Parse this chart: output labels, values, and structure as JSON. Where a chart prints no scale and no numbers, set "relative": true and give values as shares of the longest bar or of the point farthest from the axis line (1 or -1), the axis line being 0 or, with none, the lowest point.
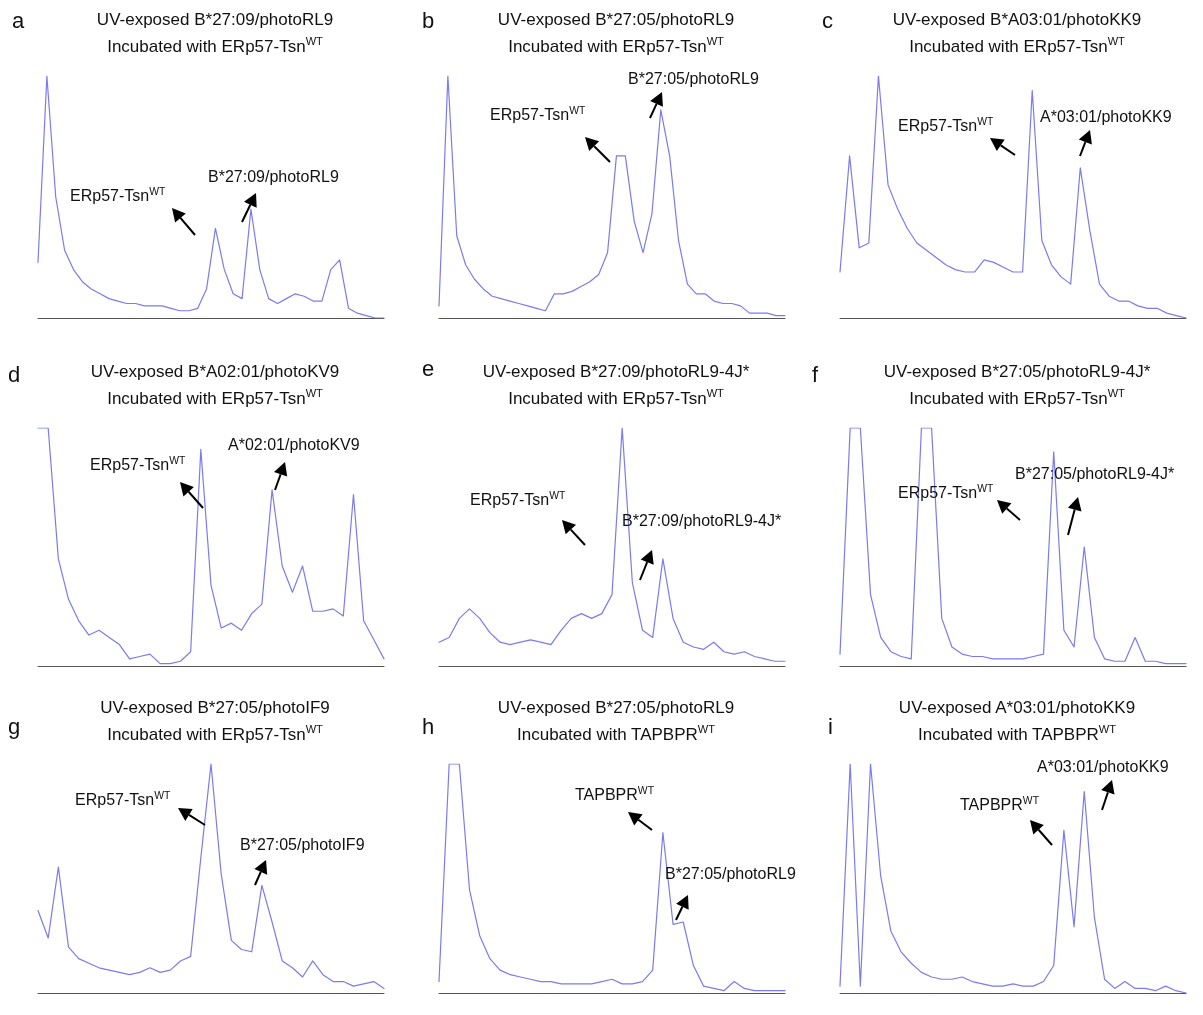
{
  "chart_data": [
    {
      "type": "line",
      "title": "UV-exposed B*27:09/photoRL9",
      "subtitle": "Incubated with ERp57-Tsn$^{WT}$",
      "relative": true,
      "marker": "none",
      "line_style": "solid",
      "grid": false,
      "annotations": [
        "a",
        "ERp57-Tsn$^{WT}$",
        "B*27:09/photoRL9"
      ],
      "categories": [
        null,
        null,
        null,
        null,
        null,
        null,
        null,
        null,
        null,
        null,
        null,
        null,
        null,
        null,
        null,
        null,
        null,
        null,
        null,
        null,
        null,
        null,
        null,
        null,
        null,
        null,
        null,
        null,
        null,
        null,
        null,
        null,
        null,
        null,
        null,
        null,
        null,
        null,
        null,
        null
      ],
      "series": [
        {
          "color": "#7b7bef",
          "values": [
            0.23,
            1.0,
            0.5,
            0.28,
            0.2,
            0.15,
            0.12,
            0.1,
            0.08,
            0.07,
            0.06,
            0.06,
            0.05,
            0.05,
            0.05,
            0.04,
            0.03,
            0.03,
            0.04,
            0.12,
            0.37,
            0.2,
            0.1,
            0.08,
            0.45,
            0.2,
            0.08,
            0.06,
            0.08,
            0.1,
            0.09,
            0.07,
            0.07,
            0.2,
            0.24,
            0.04,
            0.02,
            0.01,
            0.0,
            0.0
          ]
        }
      ]
    },
    {
      "type": "line",
      "title": "UV-exposed B*27:05/photoRL9",
      "subtitle": "Incubated with ERp57-Tsn$^{WT}$",
      "relative": true,
      "marker": "none",
      "line_style": "solid",
      "grid": false,
      "annotations": [
        "b",
        "ERp57-Tsn$^{WT}$",
        "B*27:05/photoRL9"
      ],
      "categories": [
        null,
        null,
        null,
        null,
        null,
        null,
        null,
        null,
        null,
        null,
        null,
        null,
        null,
        null,
        null,
        null,
        null,
        null,
        null,
        null,
        null,
        null,
        null,
        null,
        null,
        null,
        null,
        null,
        null,
        null,
        null,
        null,
        null,
        null,
        null,
        null,
        null,
        null,
        null,
        null
      ],
      "series": [
        {
          "color": "#7b7bef",
          "values": [
            0.05,
            1.0,
            0.34,
            0.22,
            0.16,
            0.12,
            0.09,
            0.08,
            0.07,
            0.06,
            0.05,
            0.04,
            0.03,
            0.1,
            0.1,
            0.11,
            0.13,
            0.15,
            0.18,
            0.27,
            0.67,
            0.67,
            0.4,
            0.27,
            0.43,
            0.86,
            0.67,
            0.32,
            0.14,
            0.1,
            0.1,
            0.07,
            0.06,
            0.06,
            0.05,
            0.02,
            0.02,
            0.02,
            0.01,
            0.01
          ]
        }
      ]
    },
    {
      "type": "line",
      "title": "UV-exposed B*A03:01/photoKK9",
      "subtitle": "Incubated with ERp57-Tsn$^{WT}$",
      "relative": true,
      "marker": "none",
      "line_style": "solid",
      "grid": false,
      "annotations": [
        "c",
        "ERp57-Tsn$^{WT}$",
        "A*03:01/photoKK9"
      ],
      "categories": [
        null,
        null,
        null,
        null,
        null,
        null,
        null,
        null,
        null,
        null,
        null,
        null,
        null,
        null,
        null,
        null,
        null,
        null,
        null,
        null,
        null,
        null,
        null,
        null,
        null,
        null,
        null,
        null,
        null,
        null,
        null,
        null,
        null,
        null,
        null,
        null,
        null
      ],
      "series": [
        {
          "color": "#7b7bef",
          "values": [
            0.19,
            0.67,
            0.29,
            0.31,
            1.0,
            0.55,
            0.45,
            0.37,
            0.31,
            0.28,
            0.25,
            0.22,
            0.2,
            0.19,
            0.19,
            0.24,
            0.23,
            0.21,
            0.19,
            0.19,
            0.94,
            0.32,
            0.22,
            0.17,
            0.14,
            0.62,
            0.36,
            0.14,
            0.09,
            0.07,
            0.07,
            0.05,
            0.04,
            0.04,
            0.02,
            0.01,
            0.0
          ]
        }
      ]
    },
    {
      "type": "line",
      "title": "UV-exposed B*A02:01/photoKV9",
      "subtitle": "Incubated with ERp57-Tsn$^{WT}$",
      "relative": true,
      "marker": "none",
      "line_style": "solid",
      "grid": false,
      "annotations": [
        "d",
        "ERp57-Tsn$^{WT}$",
        "A*02:01/photoKV9"
      ],
      "categories": [
        null,
        null,
        null,
        null,
        null,
        null,
        null,
        null,
        null,
        null,
        null,
        null,
        null,
        null,
        null,
        null,
        null,
        null,
        null,
        null,
        null,
        null,
        null,
        null,
        null,
        null,
        null,
        null,
        null,
        null,
        null,
        null,
        null,
        null,
        null
      ],
      "series": [
        {
          "color": "#7b7bef",
          "values": [
            1.0,
            1.0,
            0.45,
            0.28,
            0.19,
            0.13,
            0.15,
            0.12,
            0.09,
            0.03,
            0.04,
            0.05,
            0.01,
            0.01,
            0.02,
            0.06,
            0.91,
            0.34,
            0.16,
            0.18,
            0.15,
            0.22,
            0.26,
            0.74,
            0.42,
            0.31,
            0.42,
            0.23,
            0.23,
            0.24,
            0.21,
            0.72,
            0.19,
            0.11,
            0.03
          ]
        }
      ]
    },
    {
      "type": "line",
      "title": "UV-exposed B*27:09/photoRL9-4J*",
      "subtitle": "Incubated with ERp57-Tsn$^{WT}$",
      "relative": true,
      "marker": "none",
      "line_style": "solid",
      "grid": false,
      "annotations": [
        "e",
        "ERp57-Tsn$^{WT}$",
        "B*27:09/photoRL9-4J*"
      ],
      "categories": [
        null,
        null,
        null,
        null,
        null,
        null,
        null,
        null,
        null,
        null,
        null,
        null,
        null,
        null,
        null,
        null,
        null,
        null,
        null,
        null,
        null,
        null,
        null,
        null,
        null,
        null,
        null,
        null,
        null,
        null,
        null,
        null,
        null,
        null,
        null
      ],
      "series": [
        {
          "color": "#7b7bef",
          "values": [
            0.1,
            0.12,
            0.2,
            0.24,
            0.2,
            0.14,
            0.1,
            0.09,
            0.1,
            0.11,
            0.1,
            0.09,
            0.15,
            0.2,
            0.22,
            0.2,
            0.22,
            0.3,
            1.0,
            0.35,
            0.15,
            0.12,
            0.45,
            0.2,
            0.1,
            0.08,
            0.07,
            0.1,
            0.06,
            0.05,
            0.06,
            0.04,
            0.03,
            0.02,
            0.02
          ]
        }
      ]
    },
    {
      "type": "line",
      "title": "UV-exposed B*27:05/photoRL9-4J*",
      "subtitle": "Incubated with ERp57-Tsn$^{WT}$",
      "relative": true,
      "marker": "none",
      "line_style": "solid",
      "grid": false,
      "annotations": [
        "f",
        "ERp57-Tsn$^{WT}$",
        "B*27:05/photoRL9-4J*"
      ],
      "categories": [
        null,
        null,
        null,
        null,
        null,
        null,
        null,
        null,
        null,
        null,
        null,
        null,
        null,
        null,
        null,
        null,
        null,
        null,
        null,
        null,
        null,
        null,
        null,
        null,
        null,
        null,
        null,
        null,
        null,
        null,
        null,
        null,
        null,
        null,
        null
      ],
      "series": [
        {
          "color": "#7b7bef",
          "values": [
            0.05,
            1.0,
            1.0,
            0.3,
            0.12,
            0.06,
            0.04,
            0.03,
            1.0,
            1.0,
            0.2,
            0.08,
            0.05,
            0.04,
            0.04,
            0.03,
            0.03,
            0.03,
            0.03,
            0.04,
            0.05,
            0.9,
            0.15,
            0.08,
            0.5,
            0.12,
            0.03,
            0.02,
            0.02,
            0.12,
            0.02,
            0.02,
            0.01,
            0.01,
            0.01
          ]
        }
      ]
    },
    {
      "type": "line",
      "title": "UV-exposed B*27:05/photoIF9",
      "subtitle": "Incubated with ERp57-Tsn$^{WT}$",
      "relative": true,
      "marker": "none",
      "line_style": "solid",
      "grid": false,
      "annotations": [
        "g",
        "ERp57-Tsn$^{WT}$",
        "B*27:05/photoIF9"
      ],
      "categories": [
        null,
        null,
        null,
        null,
        null,
        null,
        null,
        null,
        null,
        null,
        null,
        null,
        null,
        null,
        null,
        null,
        null,
        null,
        null,
        null,
        null,
        null,
        null,
        null,
        null,
        null,
        null,
        null,
        null,
        null,
        null,
        null,
        null,
        null,
        null
      ],
      "series": [
        {
          "color": "#7b7bef",
          "values": [
            0.36,
            0.24,
            0.55,
            0.2,
            0.15,
            0.13,
            0.11,
            0.1,
            0.09,
            0.08,
            0.09,
            0.11,
            0.09,
            0.1,
            0.14,
            0.16,
            0.59,
            1.0,
            0.52,
            0.23,
            0.19,
            0.18,
            0.47,
            0.31,
            0.14,
            0.11,
            0.07,
            0.14,
            0.08,
            0.05,
            0.05,
            0.03,
            0.04,
            0.05,
            0.02
          ]
        }
      ]
    },
    {
      "type": "line",
      "title": "UV-exposed B*27:05/photoRL9",
      "subtitle": "Incubated with TAPBPR$^{WT}$",
      "relative": true,
      "marker": "none",
      "line_style": "solid",
      "grid": false,
      "annotations": [
        "h",
        "TAPBPR$^{WT}$",
        "B*27:05/photoRL9"
      ],
      "categories": [
        null,
        null,
        null,
        null,
        null,
        null,
        null,
        null,
        null,
        null,
        null,
        null,
        null,
        null,
        null,
        null,
        null,
        null,
        null,
        null,
        null,
        null,
        null,
        null,
        null,
        null,
        null,
        null,
        null,
        null,
        null,
        null,
        null,
        null,
        null
      ],
      "series": [
        {
          "color": "#7b7bef",
          "values": [
            0.05,
            1.0,
            1.0,
            0.45,
            0.25,
            0.15,
            0.1,
            0.08,
            0.07,
            0.06,
            0.05,
            0.05,
            0.04,
            0.04,
            0.04,
            0.04,
            0.05,
            0.06,
            0.04,
            0.04,
            0.05,
            0.1,
            0.7,
            0.3,
            0.31,
            0.12,
            0.03,
            0.02,
            0.01,
            0.05,
            0.02,
            0.01,
            0.01,
            0.01,
            0.01
          ]
        }
      ]
    },
    {
      "type": "line",
      "title": "UV-exposed A*03:01/photoKK9",
      "subtitle": "Incubated with TAPBPR$^{WT}$",
      "relative": true,
      "marker": "none",
      "line_style": "solid",
      "grid": false,
      "annotations": [
        "i",
        "TAPBPR$^{WT}$",
        "A*03:01/photoKK9"
      ],
      "categories": [
        null,
        null,
        null,
        null,
        null,
        null,
        null,
        null,
        null,
        null,
        null,
        null,
        null,
        null,
        null,
        null,
        null,
        null,
        null,
        null,
        null,
        null,
        null,
        null,
        null,
        null,
        null,
        null,
        null,
        null,
        null,
        null,
        null,
        null,
        null
      ],
      "series": [
        {
          "color": "#7b7bef",
          "values": [
            0.03,
            1.0,
            0.03,
            1.0,
            0.51,
            0.27,
            0.18,
            0.13,
            0.09,
            0.07,
            0.06,
            0.06,
            0.07,
            0.05,
            0.04,
            0.03,
            0.03,
            0.04,
            0.03,
            0.03,
            0.05,
            0.12,
            0.71,
            0.29,
            0.88,
            0.33,
            0.06,
            0.02,
            0.05,
            0.02,
            0.02,
            0.01,
            0.03,
            0.01,
            0.0
          ]
        }
      ]
    }
  ]
}
